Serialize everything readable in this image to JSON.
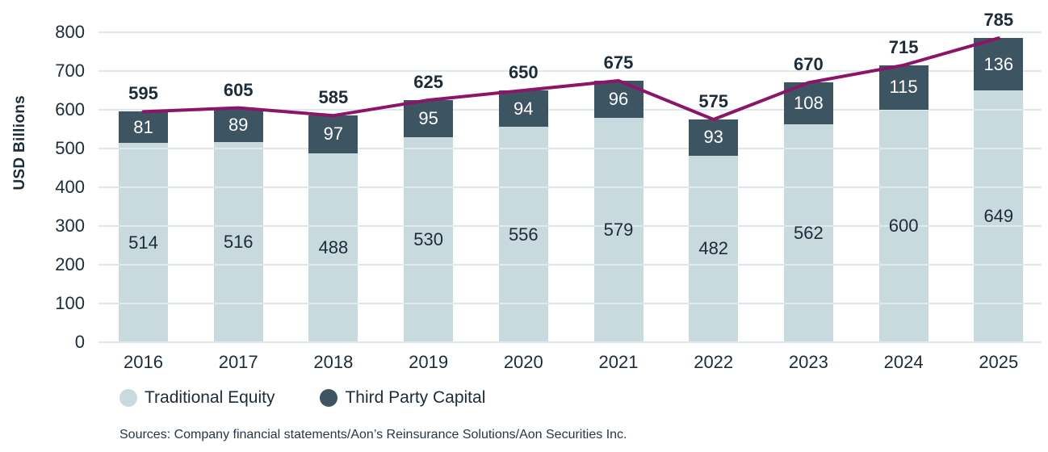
{
  "chart_data": {
    "type": "bar",
    "stacked": true,
    "categories": [
      "2016",
      "2017",
      "2018",
      "2019",
      "2020",
      "2021",
      "2022",
      "2023",
      "2024",
      "2025"
    ],
    "series": [
      {
        "name": "Traditional Equity",
        "values": [
          514,
          516,
          488,
          530,
          556,
          579,
          482,
          562,
          600,
          649
        ]
      },
      {
        "name": "Third Party Capital",
        "values": [
          81,
          89,
          97,
          95,
          94,
          96,
          93,
          108,
          115,
          136
        ]
      }
    ],
    "totals": [
      595,
      605,
      585,
      625,
      650,
      675,
      575,
      670,
      715,
      785
    ],
    "total_line": {
      "name": "Total",
      "follows": "totals"
    },
    "ylabel": "USD Billions",
    "ylim": [
      0,
      800
    ],
    "yticks": [
      0,
      100,
      200,
      300,
      400,
      500,
      600,
      700,
      800
    ],
    "grid": true,
    "legend_position": "bottom-left",
    "sources": "Sources: Company financial statements/Aon’s Reinsurance Solutions/Aon Securities Inc.",
    "colors": {
      "traditional_equity": "#c9dade",
      "third_party_capital": "#3d5462",
      "total_line": "#8b1569",
      "gridline": "#dde9ec",
      "text": "#1d2b3a",
      "bar_value_on_dark": "#ffffff"
    }
  }
}
